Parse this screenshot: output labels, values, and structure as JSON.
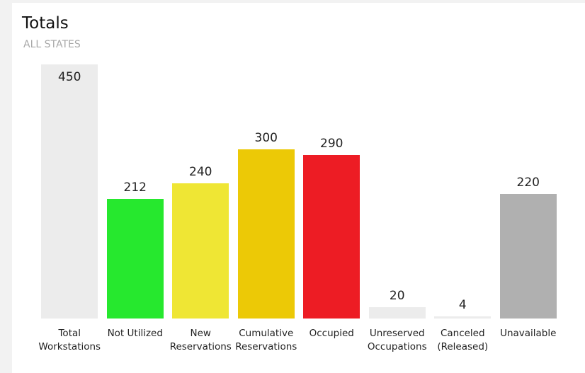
{
  "chart_data": {
    "type": "bar",
    "title": "Totals",
    "subtitle": "ALL STATES",
    "categories": [
      "Total Workstations",
      "Not Utilized",
      "New Reservations",
      "Cumulative Reservations",
      "Occupied",
      "Unreserved Occupations",
      "Canceled (Released)",
      "Unavailable"
    ],
    "values": [
      450,
      212,
      240,
      300,
      290,
      20,
      4,
      220
    ],
    "colors": [
      "#ececec",
      "#26e82e",
      "#efe634",
      "#ecc906",
      "#ed1c24",
      "#ececec",
      "#ececec",
      "#b0b0b0"
    ]
  }
}
